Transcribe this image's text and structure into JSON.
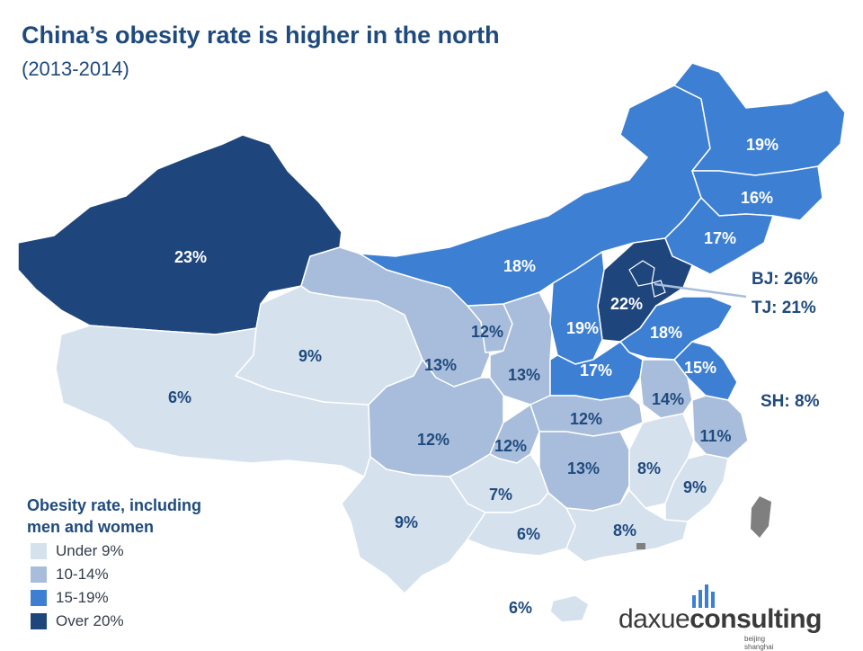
{
  "title": "China’s obesity rate is higher in the north",
  "subtitle": "(2013-2014)",
  "legend": {
    "title_line1": "Obesity rate, including",
    "title_line2": "men and women",
    "items": [
      {
        "label": "Under 9%",
        "color": "#d6e1ee"
      },
      {
        "label": "10-14%",
        "color": "#a8bddb"
      },
      {
        "label": "15-19%",
        "color": "#3d7fd3"
      },
      {
        "label": "Over 20%",
        "color": "#1e467d"
      }
    ]
  },
  "colors": {
    "under9": "#d6e1ee",
    "c10_14": "#a8bddb",
    "c15_19": "#3d7fd3",
    "over20": "#1e467d",
    "taiwan": "#7f7f7f",
    "label_dark": "#1f4a7e",
    "label_light": "#ffffff"
  },
  "regions": [
    {
      "name": "Xinjiang",
      "value": "23%",
      "category": "over20"
    },
    {
      "name": "Tibet",
      "value": "6%",
      "category": "under9"
    },
    {
      "name": "Qinghai",
      "value": "9%",
      "category": "under9"
    },
    {
      "name": "Gansu",
      "value": "13%",
      "category": "c10_14"
    },
    {
      "name": "Ningxia",
      "value": "12%",
      "category": "c10_14"
    },
    {
      "name": "Shaanxi",
      "value": "13%",
      "category": "c10_14"
    },
    {
      "name": "Inner Mongolia",
      "value": "18%",
      "category": "c15_19"
    },
    {
      "name": "Heilongjiang",
      "value": "19%",
      "category": "c15_19"
    },
    {
      "name": "Jilin",
      "value": "16%",
      "category": "c15_19"
    },
    {
      "name": "Liaoning",
      "value": "17%",
      "category": "c15_19"
    },
    {
      "name": "Hebei",
      "value": "22%",
      "category": "over20"
    },
    {
      "name": "Shanxi",
      "value": "19%",
      "category": "c15_19"
    },
    {
      "name": "Shandong",
      "value": "18%",
      "category": "c15_19"
    },
    {
      "name": "Henan",
      "value": "17%",
      "category": "c15_19"
    },
    {
      "name": "Jiangsu",
      "value": "15%",
      "category": "c15_19"
    },
    {
      "name": "Anhui",
      "value": "14%",
      "category": "c10_14"
    },
    {
      "name": "Hubei",
      "value": "12%",
      "category": "c10_14"
    },
    {
      "name": "Sichuan",
      "value": "12%",
      "category": "c10_14"
    },
    {
      "name": "Chongqing",
      "value": "12%",
      "category": "c10_14"
    },
    {
      "name": "Zhejiang",
      "value": "11%",
      "category": "c10_14"
    },
    {
      "name": "Hunan",
      "value": "13%",
      "category": "c10_14"
    },
    {
      "name": "Jiangxi",
      "value": "8%",
      "category": "under9"
    },
    {
      "name": "Fujian",
      "value": "9%",
      "category": "under9"
    },
    {
      "name": "Guizhou",
      "value": "7%",
      "category": "under9"
    },
    {
      "name": "Yunnan",
      "value": "9%",
      "category": "under9"
    },
    {
      "name": "Guangxi",
      "value": "6%",
      "category": "under9"
    },
    {
      "name": "Guangdong",
      "value": "8%",
      "category": "under9"
    },
    {
      "name": "Hainan",
      "value": "6%",
      "category": "under9"
    }
  ],
  "callouts": {
    "beijing": "BJ: 26%",
    "tianjin": "TJ: 21%",
    "shanghai": "SH: 8%"
  },
  "logo": {
    "text_a": "daxue",
    "text_b": "consulting",
    "sub": "beijing shanghai"
  }
}
